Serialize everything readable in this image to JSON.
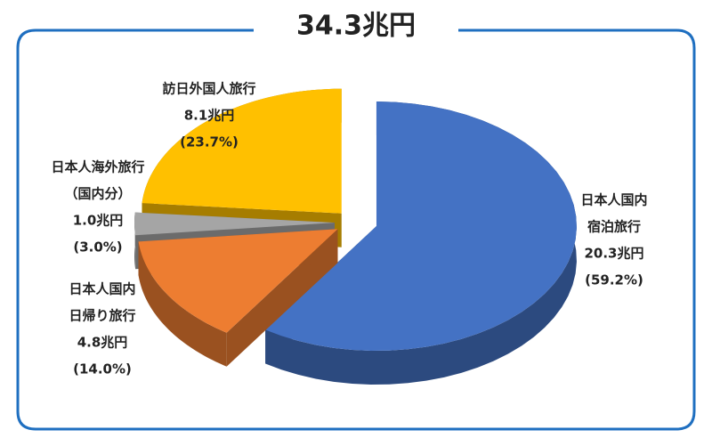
{
  "chart_data": {
    "type": "pie",
    "title": "34.3兆円",
    "categories": [
      [
        "日本人国内",
        "宿泊旅行"
      ],
      [
        "日本人国内",
        "日帰り旅行"
      ],
      [
        "日本人海外旅行",
        "（国内分）"
      ],
      [
        "訪日外国人旅行"
      ]
    ],
    "values": [
      20.3,
      4.8,
      1.0,
      8.1
    ],
    "value_labels": [
      "20.3兆円",
      "4.8兆円",
      "1.0兆円",
      "8.1兆円"
    ],
    "percents": [
      59.2,
      14.0,
      3.0,
      23.7
    ],
    "percent_labels": [
      "(59.2%)",
      "(14.0%)",
      "(3.0%)",
      "(23.7%)"
    ],
    "colors": [
      "#4472c4",
      "#ed7d31",
      "#a5a5a5",
      "#ffc000"
    ]
  }
}
